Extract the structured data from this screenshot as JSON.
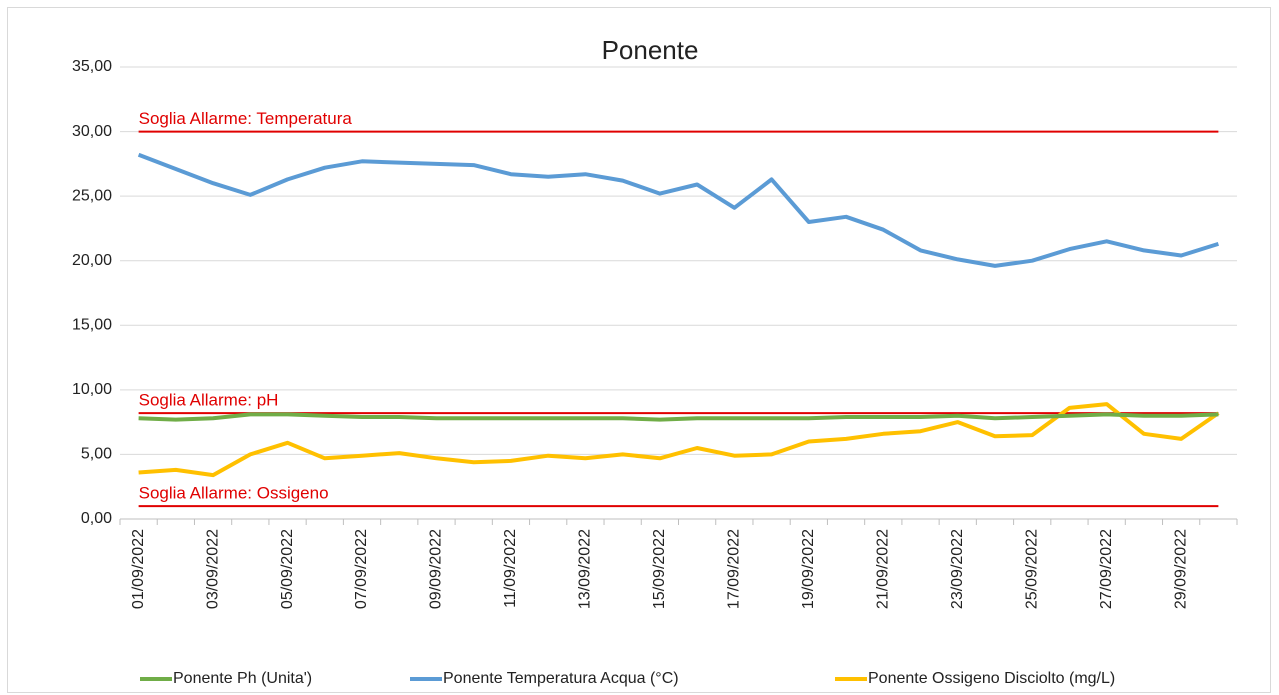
{
  "chart_data": {
    "type": "line",
    "title": "Ponente",
    "categories": [
      "01/09/2022",
      null,
      "03/09/2022",
      null,
      "05/09/2022",
      null,
      "07/09/2022",
      null,
      "09/09/2022",
      null,
      "11/09/2022",
      null,
      "13/09/2022",
      null,
      "15/09/2022",
      null,
      "17/09/2022",
      null,
      "19/09/2022",
      null,
      "21/09/2022",
      null,
      "23/09/2022",
      null,
      "25/09/2022",
      null,
      "27/09/2022",
      null,
      "29/09/2022",
      null
    ],
    "series": [
      {
        "name": "Ponente Ph (Unita')",
        "color": "#70ad47",
        "values": [
          7.8,
          7.7,
          7.8,
          8.1,
          8.1,
          8.0,
          7.9,
          7.9,
          7.8,
          7.8,
          7.8,
          7.8,
          7.8,
          7.8,
          7.7,
          7.8,
          7.8,
          7.8,
          7.8,
          7.9,
          7.9,
          7.9,
          8.0,
          7.8,
          7.9,
          8.0,
          8.1,
          8.0,
          8.0,
          8.1
        ]
      },
      {
        "name": "Ponente Temperatura Acqua (°C)",
        "color": "#5b9bd5",
        "values": [
          28.2,
          27.1,
          26.0,
          25.1,
          26.3,
          27.2,
          27.7,
          27.6,
          27.5,
          27.4,
          26.7,
          26.5,
          26.7,
          26.2,
          25.2,
          25.9,
          24.1,
          26.3,
          23.0,
          23.4,
          22.4,
          20.8,
          20.1,
          19.6,
          20.0,
          20.9,
          21.5,
          20.8,
          20.4,
          21.3
        ]
      },
      {
        "name": "Ponente Ossigeno Disciolto (mg/L)",
        "color": "#ffc000",
        "values": [
          3.6,
          3.8,
          3.4,
          5.0,
          5.9,
          4.7,
          4.9,
          5.1,
          4.7,
          4.4,
          4.5,
          4.9,
          4.7,
          5.0,
          4.7,
          5.5,
          4.9,
          5.0,
          6.0,
          6.2,
          6.6,
          6.8,
          7.5,
          6.4,
          6.5,
          8.6,
          8.9,
          6.6,
          6.2,
          8.2
        ]
      }
    ],
    "thresholds": [
      {
        "label": "Soglia Allarme: Temperatura",
        "value": 30,
        "color": "#e00000"
      },
      {
        "label": "Soglia Allarme: pH",
        "value": 8.2,
        "color": "#e00000"
      },
      {
        "label": "Soglia Allarme: Ossigeno",
        "value": 1,
        "color": "#e00000"
      }
    ],
    "ylim": [
      0,
      35
    ],
    "yticks": [
      {
        "value": 0,
        "label": "0,00"
      },
      {
        "value": 5,
        "label": "5,00"
      },
      {
        "value": 10,
        "label": "10,00"
      },
      {
        "value": 15,
        "label": "15,00"
      },
      {
        "value": 20,
        "label": "20,00"
      },
      {
        "value": 25,
        "label": "25,00"
      },
      {
        "value": 30,
        "label": "30,00"
      },
      {
        "value": 35,
        "label": "35,00"
      }
    ],
    "grid": true,
    "legend": "bottom"
  }
}
